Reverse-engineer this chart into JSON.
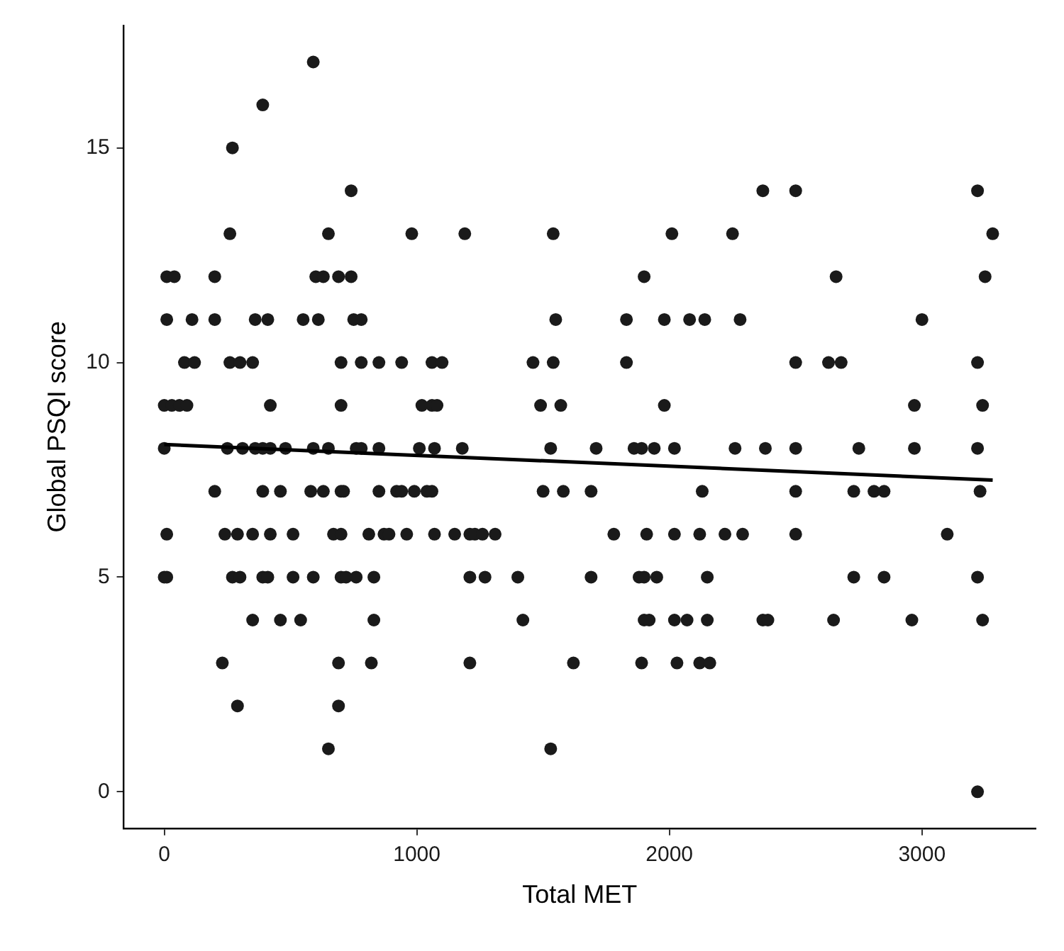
{
  "chart_data": {
    "type": "scatter",
    "xlabel": "Total MET",
    "ylabel": "Global PSQI score",
    "xlim": [
      -160,
      3450
    ],
    "ylim": [
      -0.85,
      17.85
    ],
    "xticks": [
      0,
      1000,
      2000,
      3000
    ],
    "yticks": [
      0,
      5,
      10,
      15
    ],
    "grid": false,
    "legend": false,
    "marker": "circle",
    "series": [
      {
        "color": "#1a1a1a",
        "x": [
          590,
          390,
          270,
          740,
          2370,
          2500,
          3220,
          260,
          650,
          980,
          1190,
          1540,
          2010,
          2250,
          3280,
          10,
          40,
          200,
          600,
          630,
          690,
          740,
          1900,
          2660,
          3250,
          10,
          110,
          200,
          360,
          410,
          550,
          610,
          750,
          780,
          1550,
          1830,
          1980,
          2080,
          2140,
          2280,
          3000,
          80,
          120,
          260,
          300,
          350,
          700,
          780,
          850,
          940,
          1060,
          1100,
          1460,
          1540,
          1830,
          2500,
          2630,
          2680,
          3220,
          0,
          30,
          60,
          90,
          420,
          700,
          1020,
          1060,
          1080,
          1490,
          1570,
          1980,
          2970,
          3240,
          0,
          250,
          310,
          360,
          390,
          420,
          480,
          590,
          650,
          760,
          780,
          850,
          1010,
          1070,
          1180,
          1530,
          1710,
          1860,
          1890,
          1940,
          2020,
          2260,
          2380,
          2500,
          2750,
          2970,
          3220,
          200,
          390,
          460,
          580,
          630,
          700,
          710,
          850,
          920,
          940,
          990,
          1040,
          1060,
          1500,
          1580,
          1690,
          2130,
          2500,
          2730,
          2810,
          2850,
          3230,
          10,
          240,
          290,
          350,
          420,
          510,
          670,
          700,
          810,
          870,
          890,
          960,
          1070,
          1150,
          1210,
          1230,
          1260,
          1310,
          1780,
          1910,
          2020,
          2120,
          2220,
          2290,
          2500,
          3100,
          0,
          10,
          270,
          300,
          390,
          410,
          510,
          590,
          700,
          720,
          760,
          830,
          1210,
          1270,
          1400,
          1690,
          1880,
          1900,
          1950,
          2150,
          2730,
          2850,
          3220,
          350,
          460,
          540,
          830,
          1420,
          1900,
          1920,
          2020,
          2070,
          2150,
          2370,
          2390,
          2650,
          2960,
          3240,
          230,
          690,
          820,
          1210,
          1620,
          1890,
          2030,
          2120,
          2160,
          290,
          690,
          650,
          1530,
          3220
        ],
        "values": [
          17,
          16,
          15,
          14,
          14,
          14,
          14,
          13,
          13,
          13,
          13,
          13,
          13,
          13,
          13,
          12,
          12,
          12,
          12,
          12,
          12,
          12,
          12,
          12,
          12,
          11,
          11,
          11,
          11,
          11,
          11,
          11,
          11,
          11,
          11,
          11,
          11,
          11,
          11,
          11,
          11,
          10,
          10,
          10,
          10,
          10,
          10,
          10,
          10,
          10,
          10,
          10,
          10,
          10,
          10,
          10,
          10,
          10,
          10,
          9,
          9,
          9,
          9,
          9,
          9,
          9,
          9,
          9,
          9,
          9,
          9,
          9,
          9,
          8,
          8,
          8,
          8,
          8,
          8,
          8,
          8,
          8,
          8,
          8,
          8,
          8,
          8,
          8,
          8,
          8,
          8,
          8,
          8,
          8,
          8,
          8,
          8,
          8,
          8,
          8,
          7,
          7,
          7,
          7,
          7,
          7,
          7,
          7,
          7,
          7,
          7,
          7,
          7,
          7,
          7,
          7,
          7,
          7,
          7,
          7,
          7,
          7,
          6,
          6,
          6,
          6,
          6,
          6,
          6,
          6,
          6,
          6,
          6,
          6,
          6,
          6,
          6,
          6,
          6,
          6,
          6,
          6,
          6,
          6,
          6,
          6,
          6,
          6,
          5,
          5,
          5,
          5,
          5,
          5,
          5,
          5,
          5,
          5,
          5,
          5,
          5,
          5,
          5,
          5,
          5,
          5,
          5,
          5,
          5,
          5,
          5,
          4,
          4,
          4,
          4,
          4,
          4,
          4,
          4,
          4,
          4,
          4,
          4,
          4,
          4,
          4,
          3,
          3,
          3,
          3,
          3,
          3,
          3,
          3,
          3,
          2,
          2,
          1,
          1,
          0
        ]
      },
      {
        "type": "line",
        "color": "#000000",
        "marker": "none",
        "x": [
          0,
          3280
        ],
        "values": [
          8.09,
          7.26
        ]
      }
    ]
  }
}
